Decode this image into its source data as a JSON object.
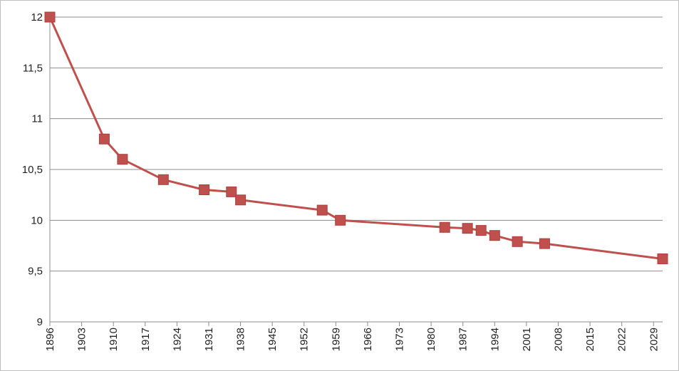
{
  "chart_data": {
    "type": "line",
    "title": "",
    "xlabel": "",
    "ylabel": "",
    "xlim": [
      1896,
      2031
    ],
    "ylim": [
      9,
      12
    ],
    "x_ticks": [
      "1896",
      "1903",
      "1910",
      "1917",
      "1924",
      "1931",
      "1938",
      "1945",
      "1952",
      "1959",
      "1966",
      "1973",
      "1980",
      "1987",
      "1994",
      "2001",
      "2008",
      "2015",
      "2022",
      "2029"
    ],
    "y_ticks": [
      "9",
      "9,5",
      "10",
      "10,5",
      "11",
      "11,5",
      "12"
    ],
    "grid": "horizontal",
    "legend": "none",
    "series": [
      {
        "color": "#C0504D",
        "marker": "square",
        "x": [
          1896,
          1908,
          1912,
          1921,
          1930,
          1936,
          1938,
          1956,
          1960,
          1983,
          1988,
          1991,
          1994,
          1999,
          2005,
          2031
        ],
        "y": [
          12.0,
          10.8,
          10.6,
          10.4,
          10.3,
          10.28,
          10.2,
          10.1,
          10.0,
          9.93,
          9.92,
          9.9,
          9.85,
          9.79,
          9.77,
          9.62
        ]
      }
    ]
  }
}
